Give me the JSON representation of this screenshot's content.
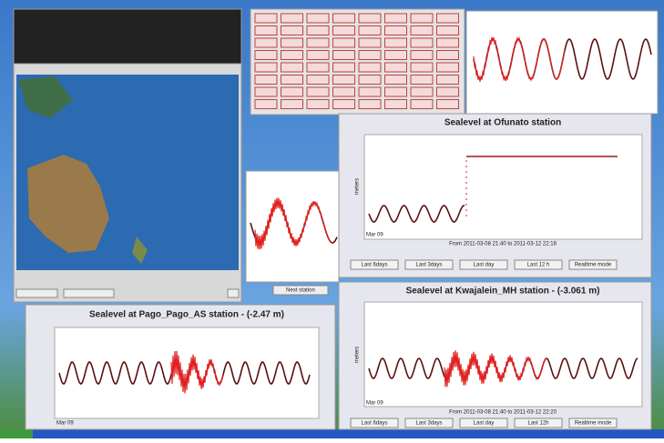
{
  "windows": {
    "ofunato": {
      "title": "Sealevel at Ofunato station",
      "y_axis": "meters",
      "x_start": "Mar 09",
      "footer": "From 2011-03-08 21:40 to 2011-03-12 22:18",
      "buttons": [
        "Last 6days",
        "Last 3days",
        "Last day",
        "Last 12 h",
        "Realtime mode"
      ]
    },
    "pago": {
      "title": "Sealevel at Pago_Pago_AS station - (-2.47 m)",
      "x_start": "Mar 09",
      "next": "Next station"
    },
    "kwajalein": {
      "title": "Sealevel at Kwajalein_MH station - (-3.061 m)",
      "y_axis": "meters",
      "x_start": "Mar 09",
      "footer": "From 2011-03-08 21:40 to 2011-03-12 22:20",
      "buttons": [
        "Last 6days",
        "Last 3days",
        "Last day",
        "Last 12h",
        "Realtime mode"
      ]
    }
  }
}
